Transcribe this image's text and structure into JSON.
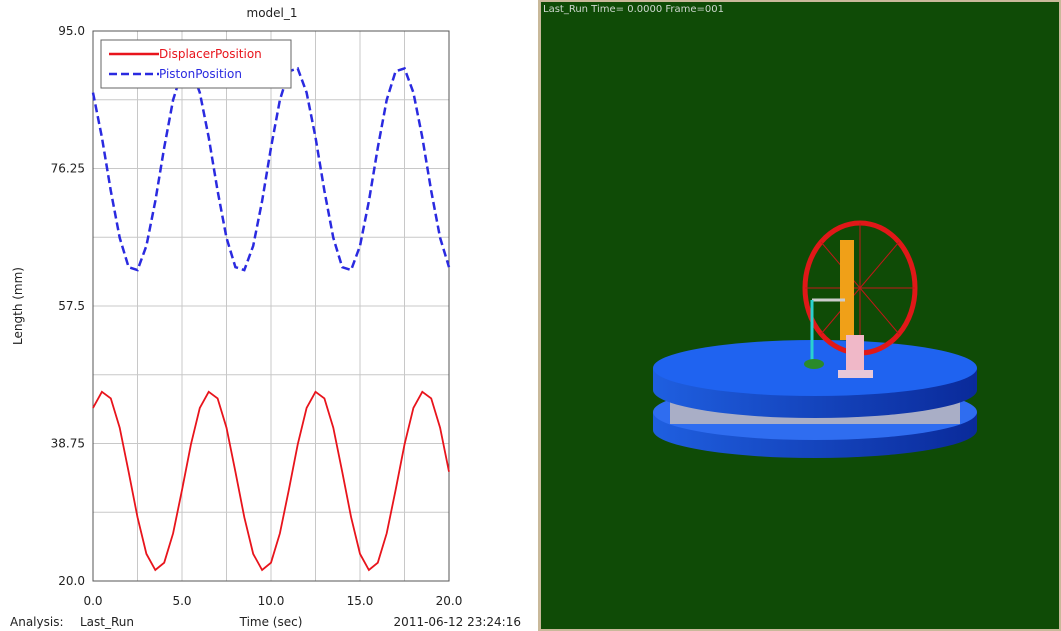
{
  "chart_data": {
    "type": "line",
    "title": "model_1",
    "y_label": "Length (mm)",
    "x_label": "Time (sec)",
    "x": [
      0,
      0.5,
      1,
      1.5,
      2,
      2.5,
      3,
      3.5,
      4,
      4.5,
      5,
      5.5,
      6,
      6.5,
      7,
      7.5,
      8,
      8.5,
      9,
      9.5,
      10,
      10.5,
      11,
      11.5,
      12,
      12.5,
      13,
      13.5,
      14,
      14.5,
      15,
      15.5,
      16,
      16.5,
      17,
      17.5,
      18,
      18.5,
      19,
      19.5,
      20
    ],
    "series": [
      {
        "name": "DisplacerPosition",
        "color": "#e8141c",
        "linestyle": "solid",
        "values": [
          43.6,
          45.8,
          44.9,
          40.9,
          34.9,
          28.7,
          23.7,
          21.5,
          22.5,
          26.5,
          32.4,
          38.6,
          43.6,
          45.8,
          44.9,
          40.9,
          34.9,
          28.7,
          23.7,
          21.5,
          22.5,
          26.5,
          32.4,
          38.6,
          43.6,
          45.8,
          44.9,
          40.9,
          34.9,
          28.7,
          23.7,
          21.5,
          22.5,
          26.5,
          32.4,
          38.6,
          43.6,
          45.8,
          44.9,
          40.9,
          34.9
        ]
      },
      {
        "name": "PistonPosition",
        "color": "#2a2ae0",
        "linestyle": "dashed",
        "values": [
          86.6,
          80.5,
          73.2,
          66.8,
          62.8,
          62.4,
          65.7,
          71.8,
          79.1,
          85.6,
          89.5,
          89.9,
          86.6,
          80.5,
          73.2,
          66.8,
          62.8,
          62.4,
          65.7,
          71.8,
          79.1,
          85.6,
          89.5,
          89.9,
          86.6,
          80.5,
          73.2,
          66.8,
          62.8,
          62.4,
          65.7,
          71.8,
          79.1,
          85.6,
          89.5,
          89.9,
          86.6,
          80.5,
          73.2,
          66.8,
          62.8
        ]
      }
    ],
    "xlim": [
      0,
      20
    ],
    "xticks": [
      {
        "value": 0,
        "label": "0.0"
      },
      {
        "value": 5,
        "label": "5.0"
      },
      {
        "value": 10,
        "label": "10.0"
      },
      {
        "value": 15,
        "label": "15.0"
      },
      {
        "value": 20,
        "label": "20.0"
      }
    ],
    "x_minor_ticks": [
      2.5,
      7.5,
      12.5,
      17.5
    ],
    "ylim": [
      20,
      95
    ],
    "yticks": [
      {
        "value": 20,
        "label": "20.0"
      },
      38.75,
      57.5,
      76.25,
      {
        "value": 95,
        "label": "95.0"
      }
    ],
    "y_minor_ticks": [
      29.375,
      48.125,
      66.875,
      85.625
    ],
    "grid": true,
    "legend": "top-left"
  },
  "footer": {
    "analysis_label": "Analysis:",
    "analysis_name": "Last_Run",
    "timestamp": "2011-06-12 23:24:16"
  },
  "viewport": {
    "caption": "Last_Run   Time= 0.0000 Frame=001"
  }
}
